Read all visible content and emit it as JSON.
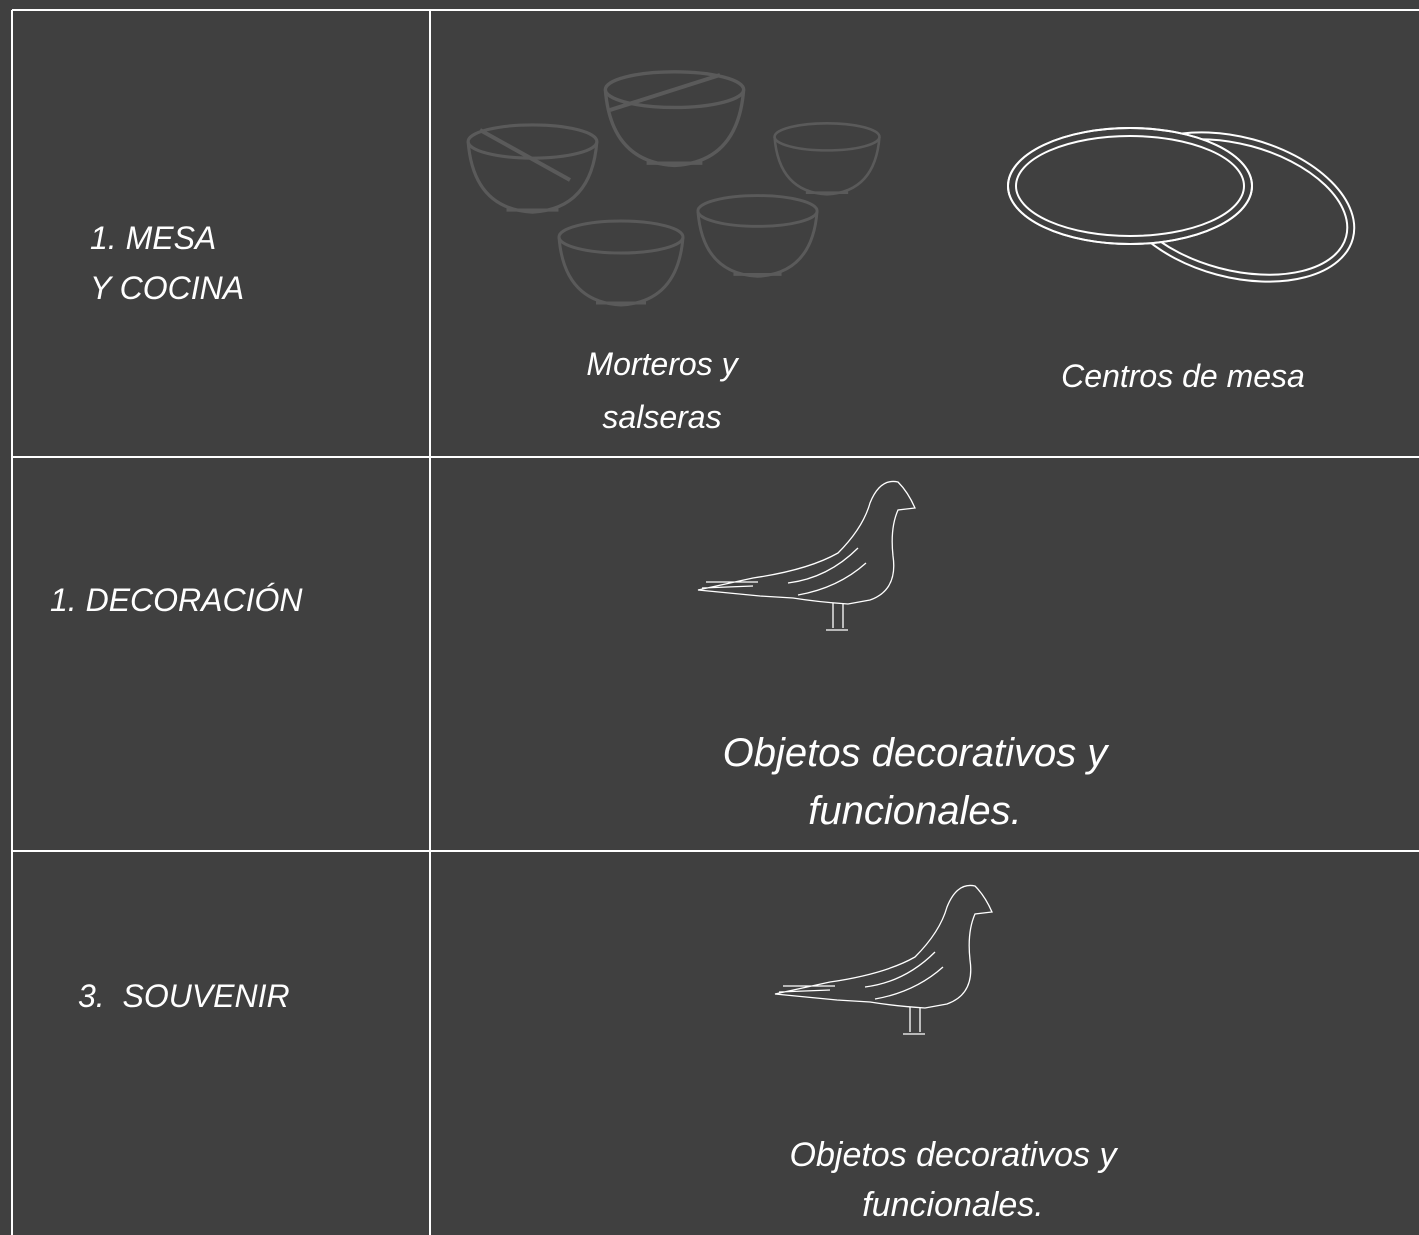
{
  "table": {
    "rows": [
      {
        "label": [
          "1. MESA",
          "Y COCINA"
        ],
        "items": [
          {
            "caption": [
              "Morteros y",
              "salseras"
            ]
          },
          {
            "caption": [
              "Centros de mesa"
            ]
          }
        ]
      },
      {
        "label": [
          "1. DECORACIÓN"
        ],
        "items": [
          {
            "caption": [
              "Objetos decorativos y",
              "funcionales."
            ]
          }
        ]
      },
      {
        "label": [
          "3.  SOUVENIR"
        ],
        "items": [
          {
            "caption": [
              "Objetos decorativos y",
              "funcionales."
            ]
          }
        ]
      }
    ]
  }
}
